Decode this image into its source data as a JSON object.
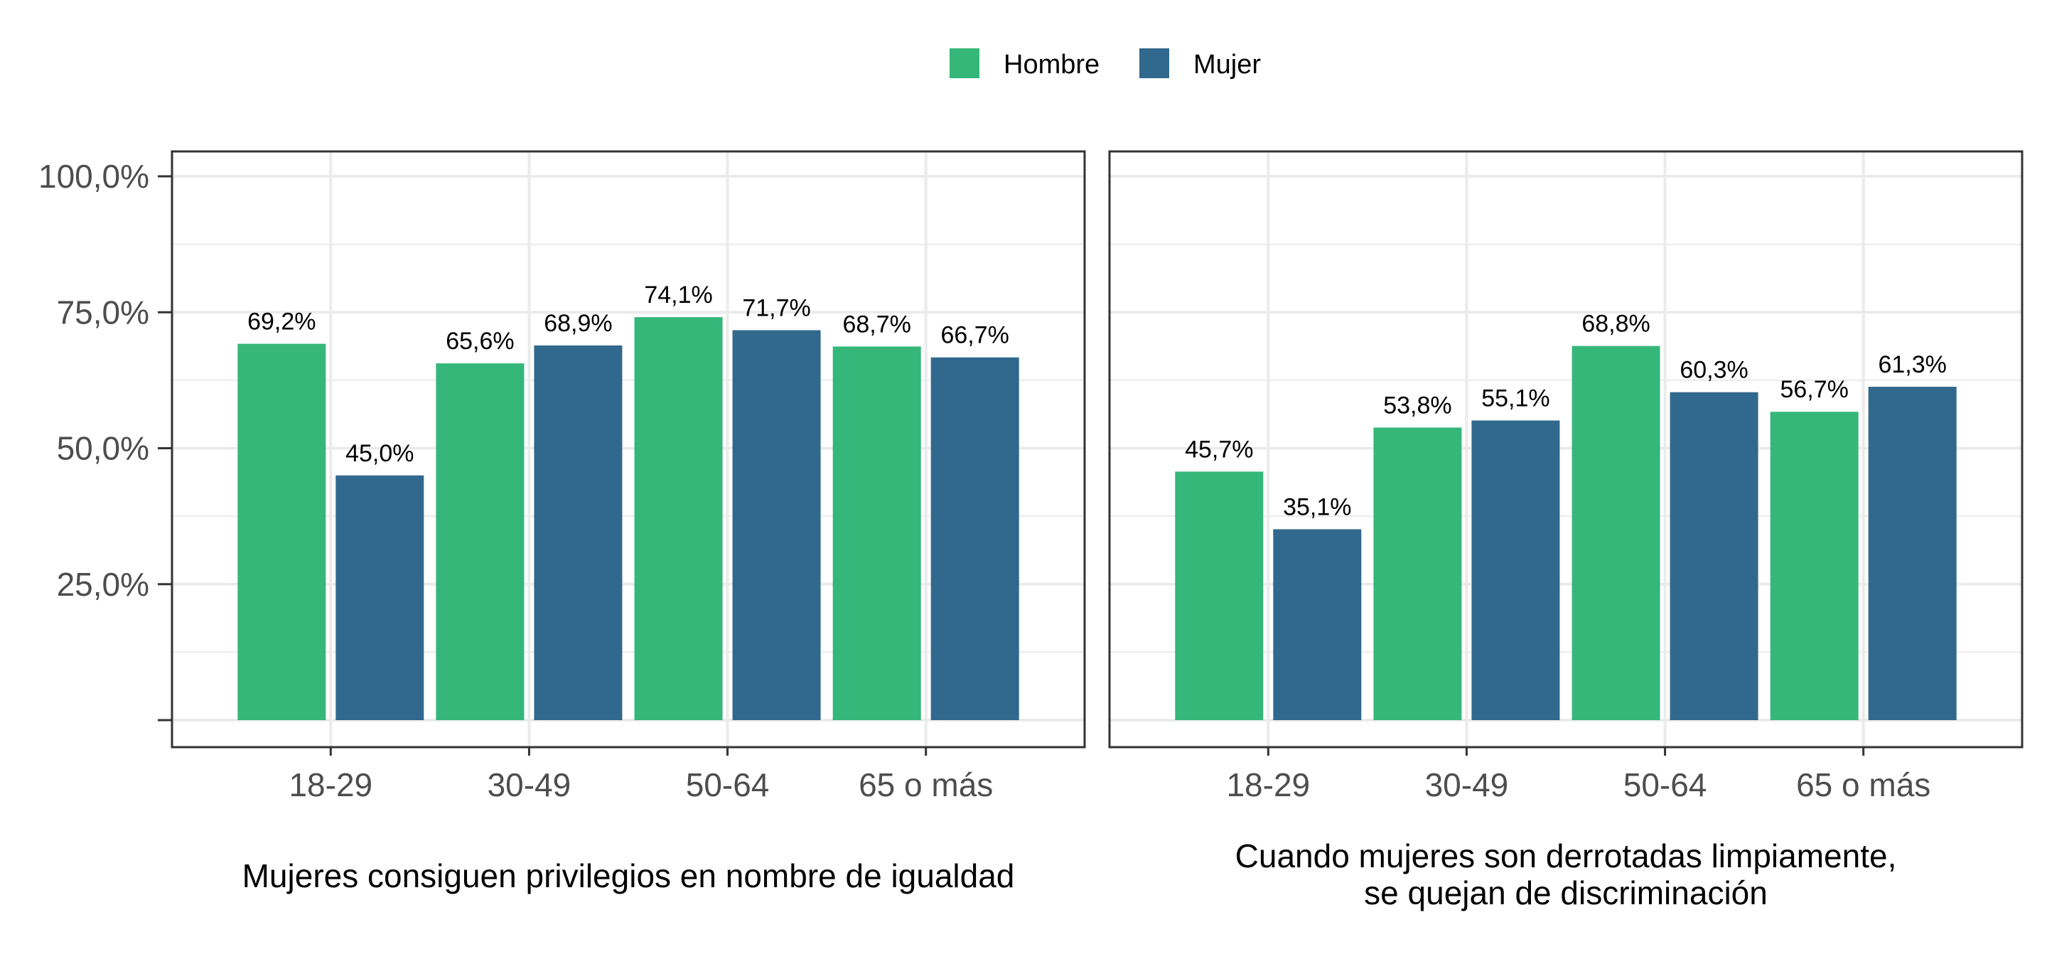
{
  "chart_data": [
    {
      "type": "bar",
      "xlabel": "Mujeres consiguen privilegios en nombre de igualdad",
      "ylabel": "",
      "categories": [
        "18-29",
        "30-49",
        "50-64",
        "65 o más"
      ],
      "series": [
        {
          "name": "Hombre",
          "values": [
            69.2,
            65.6,
            74.1,
            68.7
          ],
          "labels": [
            "69,2%",
            "65,6%",
            "74,1%",
            "68,7%"
          ]
        },
        {
          "name": "Mujer",
          "values": [
            45.0,
            68.9,
            71.7,
            66.7
          ],
          "labels": [
            "45,0%",
            "68,9%",
            "71,7%",
            "66,7%"
          ]
        }
      ],
      "ylim": [
        0,
        100
      ],
      "yticks": [
        {
          "value": 25,
          "label": "25,0%"
        },
        {
          "value": 50,
          "label": "50,0%"
        },
        {
          "value": 75,
          "label": "75,0%"
        },
        {
          "value": 100,
          "label": "100,0%"
        }
      ],
      "grid": true
    },
    {
      "type": "bar",
      "xlabel": [
        "Cuando mujeres son derrotadas limpiamente,",
        "se quejan de discriminación"
      ],
      "ylabel": "",
      "categories": [
        "18-29",
        "30-49",
        "50-64",
        "65 o más"
      ],
      "series": [
        {
          "name": "Hombre",
          "values": [
            45.7,
            53.8,
            68.8,
            56.7
          ],
          "labels": [
            "45,7%",
            "53,8%",
            "68,8%",
            "56,7%"
          ]
        },
        {
          "name": "Mujer",
          "values": [
            35.1,
            55.1,
            60.3,
            61.3
          ],
          "labels": [
            "35,1%",
            "55,1%",
            "60,3%",
            "61,3%"
          ]
        }
      ],
      "ylim": [
        0,
        100
      ],
      "grid": true
    }
  ],
  "legend": {
    "position": "top",
    "items": [
      {
        "name": "Hombre",
        "color": "#35b779"
      },
      {
        "name": "Mujer",
        "color": "#31688e"
      }
    ]
  },
  "colors": {
    "hombre": "#35b779",
    "mujer": "#31688e",
    "grid": "#ebebeb",
    "panel_border": "#333333",
    "tick_text": "#4d4d4d"
  }
}
